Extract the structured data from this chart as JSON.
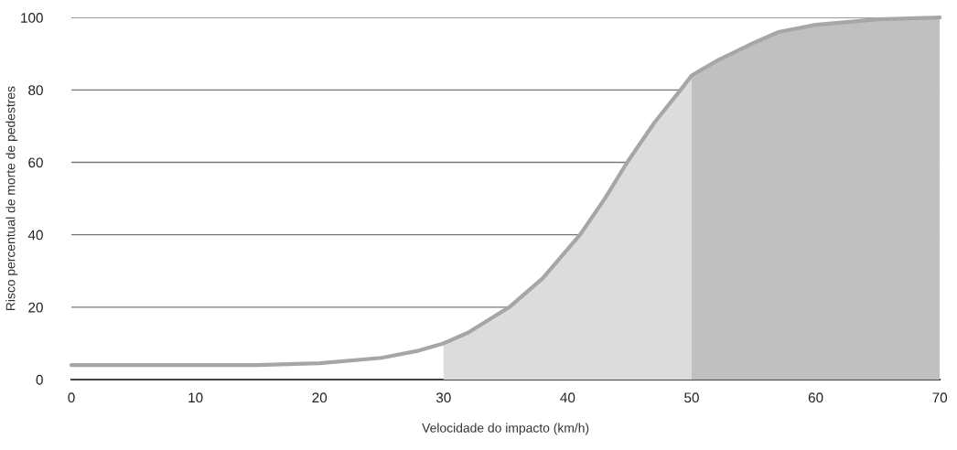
{
  "chart_data": {
    "type": "line",
    "xlabel": "Velocidade do impacto (km/h)",
    "ylabel": "Risco percentual de morte de pedestres",
    "xlim": [
      0,
      70
    ],
    "xticks": [
      0,
      10,
      20,
      30,
      40,
      50,
      60,
      70
    ],
    "ylim": [
      0,
      100
    ],
    "yticks": [
      0,
      20,
      40,
      60,
      80,
      100
    ],
    "grid": "y",
    "marker": "none",
    "line_style": "solid",
    "series": [
      {
        "type": "area",
        "color": "#dcdcdc",
        "x": [
          30,
          32,
          35.3,
          38,
          41,
          43,
          44.8,
          47,
          49.1,
          50
        ],
        "values": [
          10,
          13,
          20,
          28,
          40,
          50,
          60,
          71,
          80,
          84
        ]
      },
      {
        "type": "area",
        "color": "#c0c0c0",
        "x": [
          50,
          52,
          55,
          57,
          60,
          65,
          70
        ],
        "values": [
          84,
          88,
          93,
          96,
          98,
          99.5,
          100
        ]
      },
      {
        "color": "#a6a6a6",
        "x": [
          0,
          5,
          10,
          15,
          20,
          25,
          28,
          30,
          32,
          35.3,
          38,
          41,
          43,
          44.8,
          47,
          49.1,
          50,
          52,
          55,
          57,
          60,
          65,
          70
        ],
        "values": [
          4,
          4,
          4,
          4,
          4.5,
          6,
          8,
          10,
          13,
          20,
          28,
          40,
          50,
          60,
          71,
          80,
          84,
          88,
          93,
          96,
          98,
          99.5,
          100
        ]
      }
    ]
  }
}
